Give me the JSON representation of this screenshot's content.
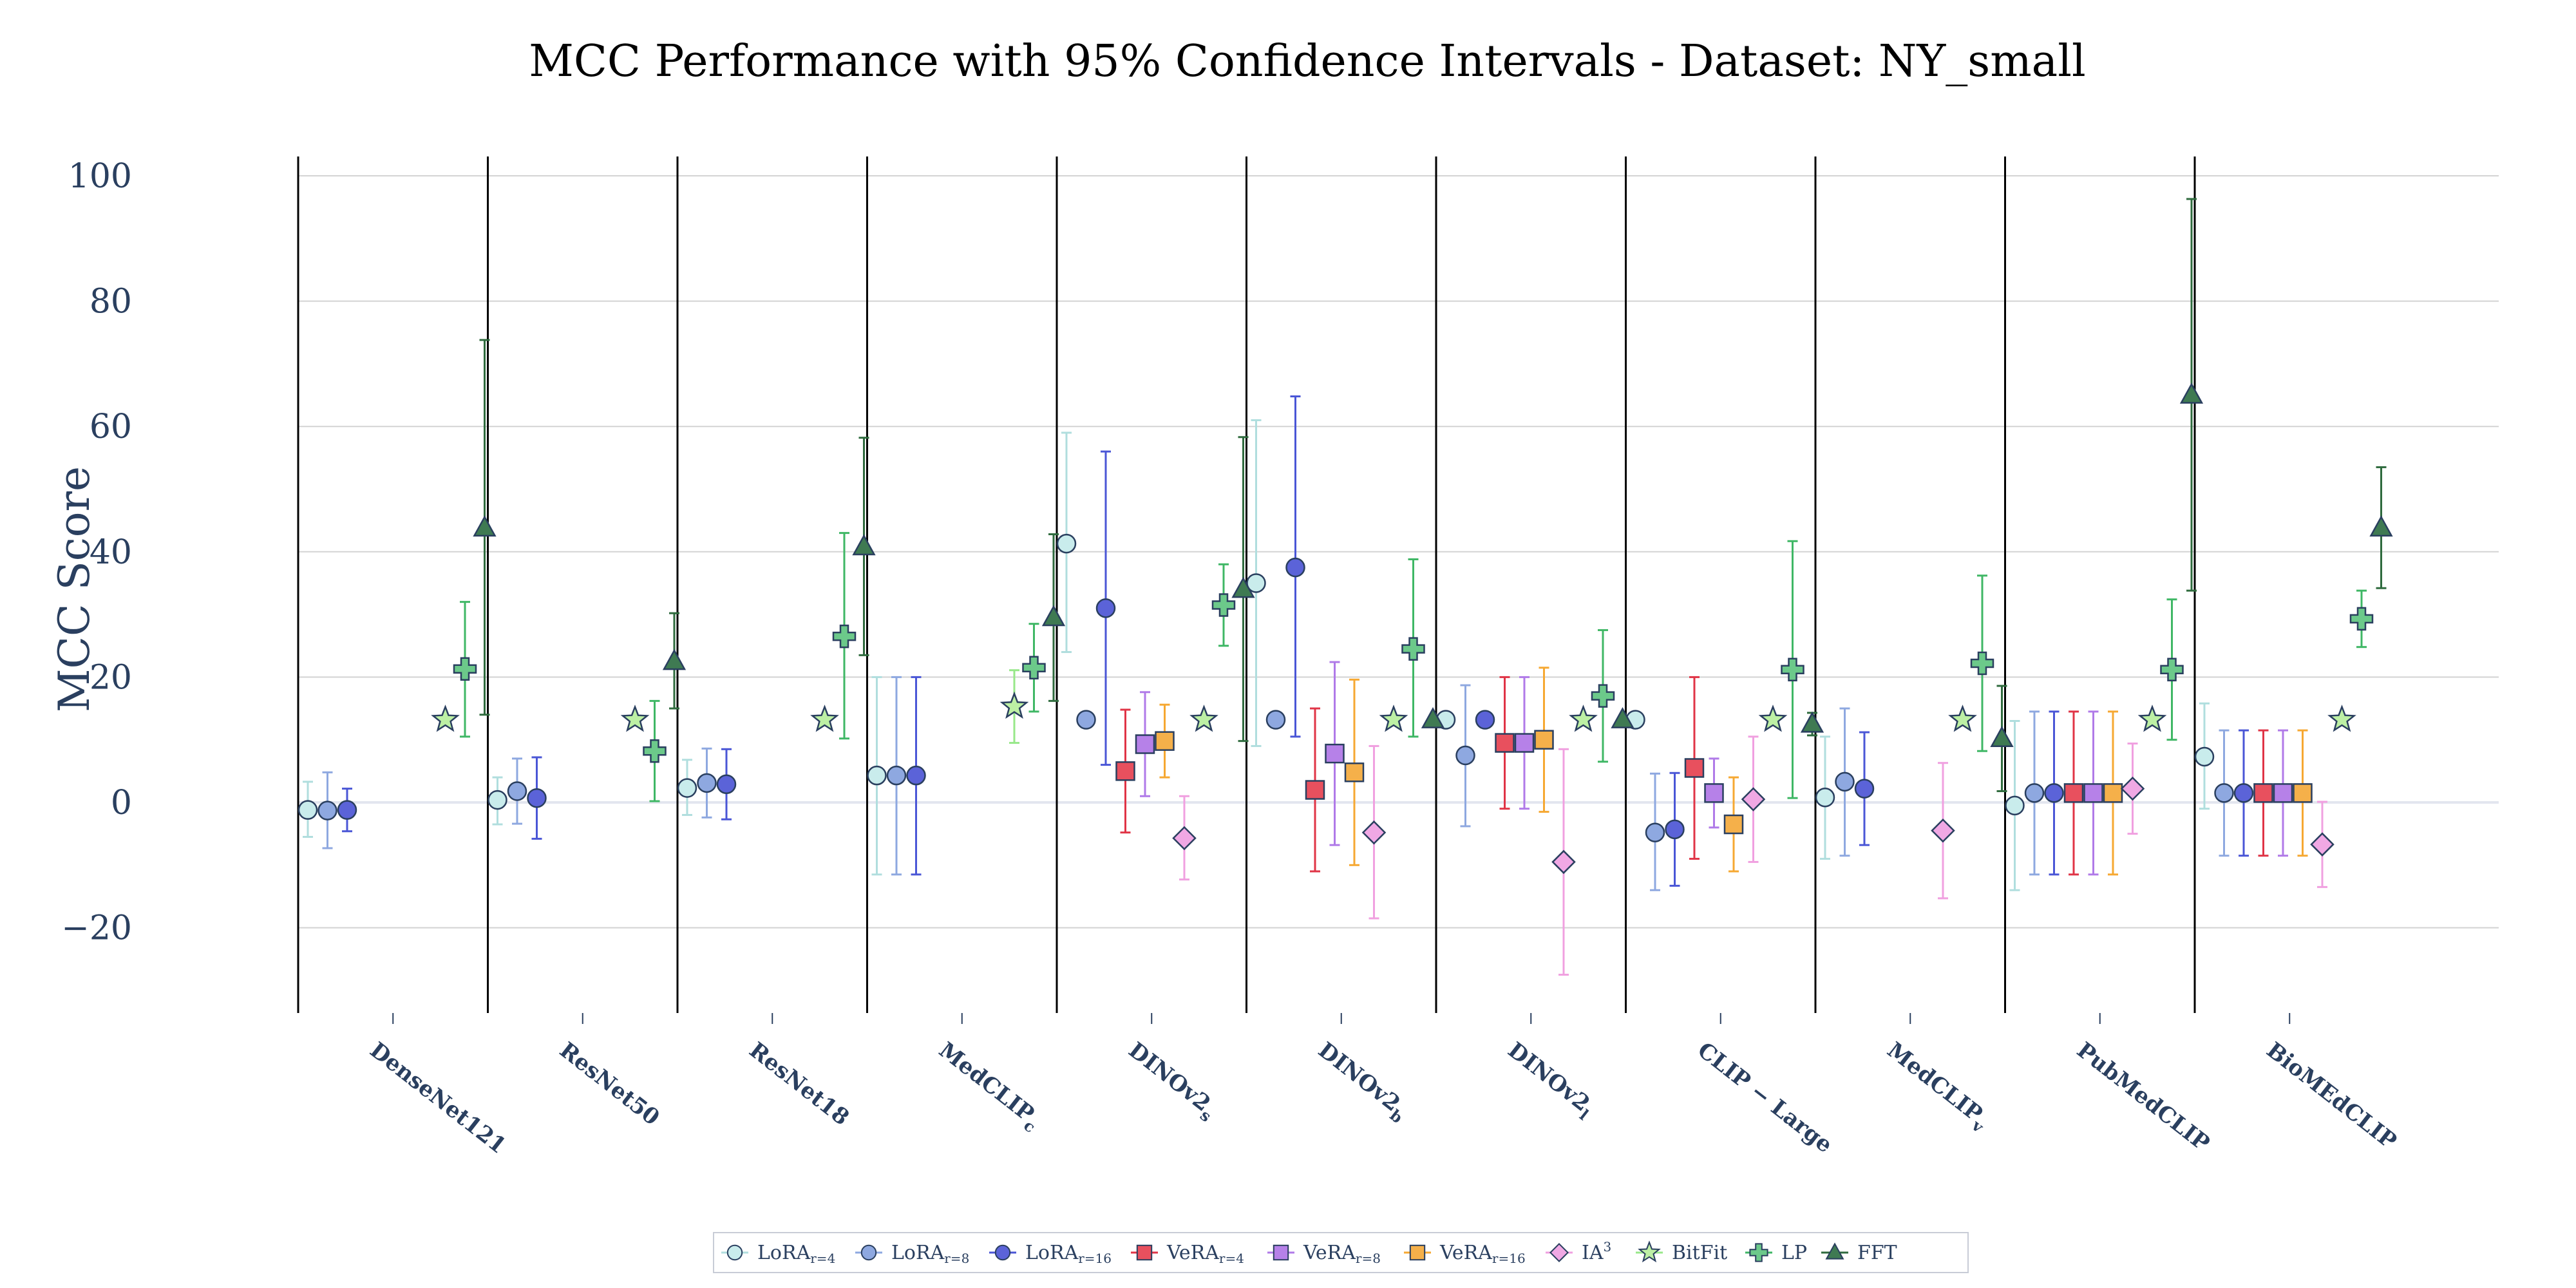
{
  "chart_data": {
    "type": "scatter",
    "title": "MCC Performance with 95% Confidence Intervals - Dataset: NY_small",
    "xlabel": "",
    "ylabel": "MCC Score",
    "ylim": [
      -34,
      100
    ],
    "yticks": [
      100,
      80,
      60,
      40,
      20,
      0,
      -20
    ],
    "ytick_labels": [
      "100",
      "80",
      "60",
      "40",
      "20",
      "0",
      "−20"
    ],
    "grid": true,
    "legend_position": "bottom-center",
    "categories": [
      {
        "name": "DenseNet121",
        "sub": ""
      },
      {
        "name": "ResNet50",
        "sub": ""
      },
      {
        "name": "ResNet18",
        "sub": ""
      },
      {
        "name": "MedCLIP",
        "sub": "c"
      },
      {
        "name": "DINOv2",
        "sub": "s"
      },
      {
        "name": "DINOv2",
        "sub": "b"
      },
      {
        "name": "DINOv2",
        "sub": "l"
      },
      {
        "name": "CLIP − Large",
        "sub": ""
      },
      {
        "name": "MedCLIP",
        "sub": "v"
      },
      {
        "name": "PubMedCLIP",
        "sub": ""
      },
      {
        "name": "BioMEdCLIP",
        "sub": ""
      }
    ],
    "series": [
      {
        "name": "LoRA",
        "sub": "r=4",
        "marker": "circle",
        "fill": "#c9ecec",
        "line": "#b0dede",
        "stroke": "#2a3f5f",
        "points": [
          {
            "cat": 0,
            "value": -1.2,
            "lo": -5.5,
            "hi": 3.3
          },
          {
            "cat": 1,
            "value": 0.4,
            "lo": -3.5,
            "hi": 4.0
          },
          {
            "cat": 2,
            "value": 2.3,
            "lo": -2.0,
            "hi": 6.8
          },
          {
            "cat": 3,
            "value": 4.3,
            "lo": -11.5,
            "hi": 20.0
          },
          {
            "cat": 4,
            "value": 41.3,
            "lo": 24.0,
            "hi": 59.0
          },
          {
            "cat": 5,
            "value": 35.0,
            "lo": 9.0,
            "hi": 61.0
          },
          {
            "cat": 6,
            "value": 13.2,
            "lo": 13.2,
            "hi": 13.2
          },
          {
            "cat": 7,
            "value": 13.2,
            "lo": 13.2,
            "hi": 13.2
          },
          {
            "cat": 8,
            "value": 0.8,
            "lo": -9.0,
            "hi": 10.5
          },
          {
            "cat": 9,
            "value": -0.5,
            "lo": -14.0,
            "hi": 13.0
          },
          {
            "cat": 10,
            "value": 7.3,
            "lo": -1.0,
            "hi": 15.8
          }
        ]
      },
      {
        "name": "LoRA",
        "sub": "r=8",
        "marker": "circle",
        "fill": "#8ea8e0",
        "line": "#8ea8e0",
        "stroke": "#2a3f5f",
        "points": [
          {
            "cat": 0,
            "value": -1.3,
            "lo": -7.3,
            "hi": 4.8
          },
          {
            "cat": 1,
            "value": 1.8,
            "lo": -3.4,
            "hi": 7.0
          },
          {
            "cat": 2,
            "value": 3.1,
            "lo": -2.4,
            "hi": 8.6
          },
          {
            "cat": 3,
            "value": 4.3,
            "lo": -11.5,
            "hi": 20.0
          },
          {
            "cat": 4,
            "value": 13.2,
            "lo": 13.2,
            "hi": 13.2
          },
          {
            "cat": 5,
            "value": 13.2,
            "lo": 13.2,
            "hi": 13.2
          },
          {
            "cat": 6,
            "value": 7.5,
            "lo": -3.8,
            "hi": 18.7
          },
          {
            "cat": 7,
            "value": -4.8,
            "lo": -14.0,
            "hi": 4.6
          },
          {
            "cat": 8,
            "value": 3.3,
            "lo": -8.5,
            "hi": 15.0
          },
          {
            "cat": 9,
            "value": 1.5,
            "lo": -11.5,
            "hi": 14.5
          },
          {
            "cat": 10,
            "value": 1.5,
            "lo": -8.5,
            "hi": 11.5
          }
        ]
      },
      {
        "name": "LoRA",
        "sub": "r=16",
        "marker": "circle",
        "fill": "#5b63d8",
        "line": "#4a56d6",
        "stroke": "#2a3f5f",
        "points": [
          {
            "cat": 0,
            "value": -1.2,
            "lo": -4.6,
            "hi": 2.2
          },
          {
            "cat": 1,
            "value": 0.7,
            "lo": -5.8,
            "hi": 7.2
          },
          {
            "cat": 2,
            "value": 2.9,
            "lo": -2.7,
            "hi": 8.5
          },
          {
            "cat": 3,
            "value": 4.3,
            "lo": -11.5,
            "hi": 20.0
          },
          {
            "cat": 4,
            "value": 31.0,
            "lo": 6.0,
            "hi": 56.0
          },
          {
            "cat": 5,
            "value": 37.5,
            "lo": 10.5,
            "hi": 64.8
          },
          {
            "cat": 6,
            "value": 13.2,
            "lo": 13.2,
            "hi": 13.2
          },
          {
            "cat": 7,
            "value": -4.3,
            "lo": -13.3,
            "hi": 4.7
          },
          {
            "cat": 8,
            "value": 2.2,
            "lo": -6.8,
            "hi": 11.2
          },
          {
            "cat": 9,
            "value": 1.5,
            "lo": -11.5,
            "hi": 14.5
          },
          {
            "cat": 10,
            "value": 1.5,
            "lo": -8.5,
            "hi": 11.5
          }
        ]
      },
      {
        "name": "VeRA",
        "sub": "r=4",
        "marker": "square",
        "fill": "#e8505e",
        "line": "#e03446",
        "stroke": "#2a3f5f",
        "points": [
          {
            "cat": 4,
            "value": 5.0,
            "lo": -4.8,
            "hi": 14.8
          },
          {
            "cat": 5,
            "value": 2.0,
            "lo": -11.0,
            "hi": 15.0
          },
          {
            "cat": 6,
            "value": 9.5,
            "lo": -1.0,
            "hi": 20.0
          },
          {
            "cat": 7,
            "value": 5.5,
            "lo": -9.0,
            "hi": 20.0
          },
          {
            "cat": 9,
            "value": 1.5,
            "lo": -11.5,
            "hi": 14.5
          },
          {
            "cat": 10,
            "value": 1.5,
            "lo": -8.5,
            "hi": 11.5
          }
        ]
      },
      {
        "name": "VeRA",
        "sub": "r=8",
        "marker": "square",
        "fill": "#b681e8",
        "line": "#b07ae8",
        "stroke": "#2a3f5f",
        "points": [
          {
            "cat": 4,
            "value": 9.3,
            "lo": 1.0,
            "hi": 17.6
          },
          {
            "cat": 5,
            "value": 7.8,
            "lo": -6.8,
            "hi": 22.4
          },
          {
            "cat": 6,
            "value": 9.5,
            "lo": -1.0,
            "hi": 20.0
          },
          {
            "cat": 7,
            "value": 1.5,
            "lo": -4.0,
            "hi": 7.0
          },
          {
            "cat": 9,
            "value": 1.5,
            "lo": -11.5,
            "hi": 14.5
          },
          {
            "cat": 10,
            "value": 1.5,
            "lo": -8.5,
            "hi": 11.5
          }
        ]
      },
      {
        "name": "VeRA",
        "sub": "r=16",
        "marker": "square",
        "fill": "#f5b04a",
        "line": "#f6a832",
        "stroke": "#2a3f5f",
        "points": [
          {
            "cat": 4,
            "value": 9.8,
            "lo": 4.0,
            "hi": 15.6
          },
          {
            "cat": 5,
            "value": 4.8,
            "lo": -10.0,
            "hi": 19.6
          },
          {
            "cat": 6,
            "value": 10.0,
            "lo": -1.5,
            "hi": 21.5
          },
          {
            "cat": 7,
            "value": -3.5,
            "lo": -11.0,
            "hi": 4.0
          },
          {
            "cat": 9,
            "value": 1.5,
            "lo": -11.5,
            "hi": 14.5
          },
          {
            "cat": 10,
            "value": 1.5,
            "lo": -8.5,
            "hi": 11.5
          }
        ]
      },
      {
        "name": "IA",
        "sup": "3",
        "marker": "diamond",
        "fill": "#f0a8e4",
        "line": "#f0a0e0",
        "stroke": "#2a3f5f",
        "points": [
          {
            "cat": 4,
            "value": -5.7,
            "lo": -12.3,
            "hi": 1.0
          },
          {
            "cat": 5,
            "value": -4.8,
            "lo": -18.5,
            "hi": 9.0
          },
          {
            "cat": 6,
            "value": -9.5,
            "lo": -27.5,
            "hi": 8.5
          },
          {
            "cat": 7,
            "value": 0.5,
            "lo": -9.5,
            "hi": 10.5
          },
          {
            "cat": 8,
            "value": -4.5,
            "lo": -15.3,
            "hi": 6.3
          },
          {
            "cat": 9,
            "value": 2.2,
            "lo": -5.0,
            "hi": 9.4
          },
          {
            "cat": 10,
            "value": -6.7,
            "lo": -13.5,
            "hi": 0.1
          }
        ]
      },
      {
        "name": "BitFit",
        "marker": "star",
        "fill": "#bdf0a4",
        "line": "#98e88a",
        "stroke": "#2a3f5f",
        "points": [
          {
            "cat": 0,
            "value": 13.2,
            "lo": 13.2,
            "hi": 13.2
          },
          {
            "cat": 1,
            "value": 13.2,
            "lo": 13.2,
            "hi": 13.2
          },
          {
            "cat": 2,
            "value": 13.2,
            "lo": 13.2,
            "hi": 13.2
          },
          {
            "cat": 3,
            "value": 15.3,
            "lo": 9.5,
            "hi": 21.1
          },
          {
            "cat": 4,
            "value": 13.2,
            "lo": 13.2,
            "hi": 13.2
          },
          {
            "cat": 5,
            "value": 13.2,
            "lo": 13.2,
            "hi": 13.2
          },
          {
            "cat": 6,
            "value": 13.2,
            "lo": 13.2,
            "hi": 13.2
          },
          {
            "cat": 7,
            "value": 13.2,
            "lo": 13.2,
            "hi": 13.2
          },
          {
            "cat": 8,
            "value": 13.2,
            "lo": 13.2,
            "hi": 13.2
          },
          {
            "cat": 9,
            "value": 13.2,
            "lo": 13.2,
            "hi": 13.2
          },
          {
            "cat": 10,
            "value": 13.2,
            "lo": 13.2,
            "hi": 13.2
          }
        ]
      },
      {
        "name": "LP",
        "marker": "cross",
        "fill": "#6cc98a",
        "line": "#3fb765",
        "stroke": "#2a3f5f",
        "points": [
          {
            "cat": 0,
            "value": 21.3,
            "lo": 10.5,
            "hi": 32.0
          },
          {
            "cat": 1,
            "value": 8.2,
            "lo": 0.2,
            "hi": 16.2
          },
          {
            "cat": 2,
            "value": 26.5,
            "lo": 10.2,
            "hi": 43.0
          },
          {
            "cat": 3,
            "value": 21.5,
            "lo": 14.5,
            "hi": 28.5
          },
          {
            "cat": 4,
            "value": 31.5,
            "lo": 25.0,
            "hi": 38.0
          },
          {
            "cat": 5,
            "value": 24.5,
            "lo": 10.5,
            "hi": 38.8
          },
          {
            "cat": 6,
            "value": 17.0,
            "lo": 6.5,
            "hi": 27.5
          },
          {
            "cat": 7,
            "value": 21.2,
            "lo": 0.7,
            "hi": 41.7
          },
          {
            "cat": 8,
            "value": 22.2,
            "lo": 8.2,
            "hi": 36.2
          },
          {
            "cat": 9,
            "value": 21.2,
            "lo": 10.0,
            "hi": 32.4
          },
          {
            "cat": 10,
            "value": 29.3,
            "lo": 24.8,
            "hi": 33.8
          }
        ]
      },
      {
        "name": "FFT",
        "marker": "triangle",
        "fill": "#3f7a52",
        "line": "#2f6b3e",
        "stroke": "#2a3f5f",
        "points": [
          {
            "cat": 0,
            "value": 43.8,
            "lo": 14.0,
            "hi": 73.8
          },
          {
            "cat": 1,
            "value": 22.5,
            "lo": 15.0,
            "hi": 30.2
          },
          {
            "cat": 2,
            "value": 40.8,
            "lo": 23.5,
            "hi": 58.2
          },
          {
            "cat": 3,
            "value": 29.5,
            "lo": 16.2,
            "hi": 42.8
          },
          {
            "cat": 4,
            "value": 34.0,
            "lo": 9.8,
            "hi": 58.3
          },
          {
            "cat": 5,
            "value": 13.2,
            "lo": 13.2,
            "hi": 13.2
          },
          {
            "cat": 6,
            "value": 13.2,
            "lo": 13.2,
            "hi": 13.2
          },
          {
            "cat": 7,
            "value": 12.5,
            "lo": 10.7,
            "hi": 14.3
          },
          {
            "cat": 8,
            "value": 10.2,
            "lo": 1.8,
            "hi": 18.6
          },
          {
            "cat": 9,
            "value": 65.0,
            "lo": 33.8,
            "hi": 96.3
          },
          {
            "cat": 10,
            "value": 43.8,
            "lo": 34.2,
            "hi": 53.5
          }
        ]
      }
    ]
  }
}
